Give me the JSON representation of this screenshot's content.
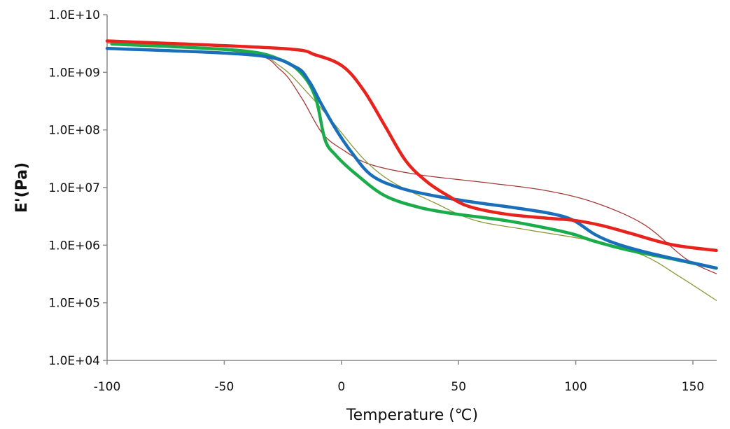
{
  "chart_data": {
    "type": "line",
    "title": "",
    "xlabel": "Temperature (℃)",
    "ylabel": "E'(Pa)",
    "xlim": [
      -100,
      160
    ],
    "ylim": [
      10000.0,
      10000000000.0
    ],
    "yscale": "log",
    "grid": false,
    "legend": "none",
    "x_ticks": [
      -100,
      -50,
      0,
      50,
      100,
      150
    ],
    "x_tick_labels": [
      "-100",
      "-50",
      "0",
      "50",
      "100",
      "150"
    ],
    "y_ticks": [
      10000000000.0,
      1000000000.0,
      100000000.0,
      10000000.0,
      1000000.0,
      100000.0,
      10000.0
    ],
    "y_tick_labels": [
      "1.0E+10",
      "1.0E+09",
      "1.0E+08",
      "1.0E+07",
      "1.0E+06",
      "1.0E+05",
      "1.0E+04"
    ],
    "series": [
      {
        "color": "#a33a3a",
        "width": "thin",
        "x": [
          -100,
          -41,
          -26,
          -17,
          -8.3,
          0.7,
          12.6,
          33.5,
          63,
          87,
          108,
          129,
          147,
          160
        ],
        "y": [
          3400000000.0,
          2200000000.0,
          1100000000.0,
          360000000.0,
          89000000.0,
          45000000.0,
          25000000.0,
          16600000.0,
          12000000.0,
          8900000.0,
          5500000.0,
          2300000.0,
          580000.0,
          320000.0
        ]
      },
      {
        "color": "#8a9a3a",
        "width": "thin",
        "x": [
          -100,
          -41,
          -26,
          -14,
          -2.3,
          9.6,
          21.5,
          39.5,
          57,
          81,
          108,
          129,
          144,
          160
        ],
        "y": [
          3200000000.0,
          2200000000.0,
          1260000000.0,
          420000000.0,
          117000000.0,
          31000000.0,
          12600000.0,
          5500000.0,
          2700000.0,
          1800000.0,
          1170000.0,
          660000.0,
          290000.0,
          110000.0
        ]
      },
      {
        "color": "#1aab4a",
        "width": "thick",
        "x": [
          -98,
          -44,
          -26,
          -17,
          -11,
          -7,
          -2.3,
          6.6,
          18.6,
          33.5,
          48.4,
          69.4,
          87,
          99,
          108,
          123,
          141,
          160
        ],
        "y": [
          3100000000.0,
          2400000000.0,
          1660000000.0,
          950000000.0,
          360000000.0,
          68000000.0,
          36000000.0,
          16600000.0,
          7200000.0,
          4500000.0,
          3500000.0,
          2700000.0,
          2000000.0,
          1550000.0,
          1170000.0,
          810000.0,
          580000.0,
          400000.0
        ]
      },
      {
        "color": "#1a6fba",
        "width": "thick",
        "x": [
          -100,
          -38,
          -20,
          -14,
          -8.3,
          -2.3,
          3.6,
          12.6,
          24.5,
          39.5,
          57.4,
          75,
          90,
          99,
          108,
          117,
          132,
          160
        ],
        "y": [
          2600000000.0,
          2000000000.0,
          1260000000.0,
          720000000.0,
          270000000.0,
          102000000.0,
          45000000.0,
          16600000.0,
          10000000.0,
          7200000.0,
          5500000.0,
          4400000.0,
          3500000.0,
          2700000.0,
          1550000.0,
          1070000.0,
          720000.0,
          400000.0
        ]
      },
      {
        "color": "#e8221c",
        "width": "thick",
        "x": [
          -100,
          -26,
          -11,
          0.7,
          9.6,
          18.6,
          27.5,
          36.5,
          45.5,
          54.4,
          69.4,
          87.3,
          99.2,
          111,
          123,
          141,
          160
        ],
        "y": [
          3500000000.0,
          2600000000.0,
          2000000000.0,
          1260000000.0,
          480000000.0,
          117000000.0,
          29000000.0,
          12600000.0,
          7200000.0,
          4700000.0,
          3500000.0,
          2950000.0,
          2700000.0,
          2200000.0,
          1620000.0,
          1020000.0,
          810000.0
        ]
      }
    ]
  }
}
